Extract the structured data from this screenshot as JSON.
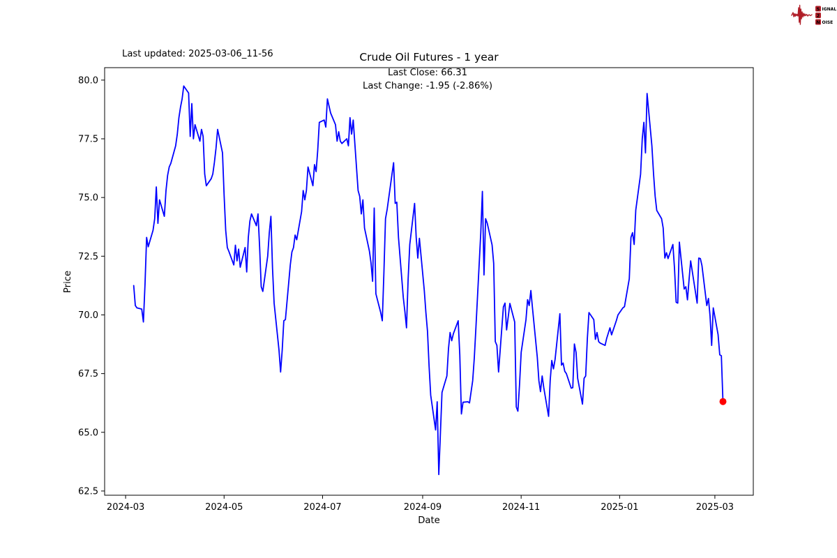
{
  "header": {
    "last_updated": "Last updated: 2025-03-06_11-56"
  },
  "logo": {
    "color": "#b01e28",
    "rows": [
      {
        "boxed": "S",
        "rest": "IGNAL"
      },
      {
        "boxed": "2",
        "rest": ""
      },
      {
        "boxed": "N",
        "rest": "OISE"
      }
    ]
  },
  "chart_data": {
    "type": "line",
    "title": "Crude Oil Futures - 1 year",
    "annotation": [
      "Last Close: 66.31",
      "Last Change: -1.95 (-2.86%)"
    ],
    "xlabel": "Date",
    "ylabel": "Price",
    "line_color": "#0000ff",
    "background": "#ffffff",
    "grid": false,
    "legend": "none",
    "x_axis": {
      "type": "date",
      "origin_day0": "2024-03-01",
      "range_days": [
        -13,
        388.8
      ],
      "ticks": [
        {
          "day": 0,
          "label": "2024-03"
        },
        {
          "day": 61,
          "label": "2024-05"
        },
        {
          "day": 122,
          "label": "2024-07"
        },
        {
          "day": 184,
          "label": "2024-09"
        },
        {
          "day": 245,
          "label": "2024-11"
        },
        {
          "day": 306,
          "label": "2025-01"
        },
        {
          "day": 365,
          "label": "2025-03"
        }
      ]
    },
    "y_axis": {
      "range": [
        62.32,
        80.53
      ],
      "ticks": [
        62.5,
        65.0,
        67.5,
        70.0,
        72.5,
        75.0,
        77.5,
        80.0
      ]
    },
    "marker": {
      "day": 370,
      "price": 66.31,
      "color": "#ff0000",
      "label_date": "2025-03-06"
    },
    "last_close": 66.31,
    "last_change": -1.95,
    "last_change_pct": -2.86,
    "series": [
      {
        "name": "Price",
        "points": [
          [
            5,
            71.25
          ],
          [
            6,
            70.4
          ],
          [
            7,
            70.3
          ],
          [
            10,
            70.25
          ],
          [
            11,
            69.7
          ],
          [
            12,
            71.3
          ],
          [
            13,
            73.3
          ],
          [
            14,
            72.9
          ],
          [
            17,
            73.6
          ],
          [
            18,
            74.1
          ],
          [
            19,
            75.45
          ],
          [
            20,
            73.9
          ],
          [
            21,
            74.9
          ],
          [
            24,
            74.2
          ],
          [
            25,
            75.3
          ],
          [
            26,
            75.94
          ],
          [
            27,
            76.3
          ],
          [
            28,
            76.45
          ],
          [
            31,
            77.2
          ],
          [
            32,
            77.7
          ],
          [
            33,
            78.4
          ],
          [
            34,
            78.85
          ],
          [
            35,
            79.2
          ],
          [
            36,
            79.75
          ],
          [
            39,
            79.45
          ],
          [
            40,
            77.6
          ],
          [
            41,
            79.0
          ],
          [
            42,
            77.5
          ],
          [
            43,
            78.1
          ],
          [
            46,
            77.4
          ],
          [
            47,
            77.9
          ],
          [
            48,
            77.6
          ],
          [
            49,
            76.0
          ],
          [
            50,
            75.5
          ],
          [
            53,
            75.8
          ],
          [
            54,
            76.0
          ],
          [
            55,
            76.5
          ],
          [
            56,
            77.1
          ],
          [
            57,
            77.9
          ],
          [
            60,
            76.9
          ],
          [
            61,
            75.1
          ],
          [
            62,
            73.6
          ],
          [
            63,
            72.87
          ],
          [
            64,
            72.7
          ],
          [
            67,
            72.13
          ],
          [
            68,
            72.97
          ],
          [
            69,
            72.3
          ],
          [
            70,
            72.8
          ],
          [
            71,
            72.03
          ],
          [
            74,
            72.87
          ],
          [
            75,
            71.83
          ],
          [
            76,
            73.3
          ],
          [
            77,
            74.0
          ],
          [
            78,
            74.3
          ],
          [
            81,
            73.8
          ],
          [
            82,
            74.3
          ],
          [
            83,
            72.9
          ],
          [
            84,
            71.2
          ],
          [
            85,
            71.0
          ],
          [
            88,
            72.5
          ],
          [
            89,
            73.5
          ],
          [
            90,
            74.2
          ],
          [
            91,
            72.0
          ],
          [
            92,
            70.5
          ],
          [
            95,
            68.5
          ],
          [
            96,
            67.57
          ],
          [
            97,
            68.5
          ],
          [
            98,
            69.75
          ],
          [
            99,
            69.8
          ],
          [
            102,
            72.13
          ],
          [
            103,
            72.68
          ],
          [
            104,
            72.87
          ],
          [
            105,
            73.4
          ],
          [
            106,
            73.2
          ],
          [
            109,
            74.4
          ],
          [
            110,
            75.3
          ],
          [
            111,
            74.9
          ],
          [
            112,
            75.3
          ],
          [
            113,
            76.3
          ],
          [
            116,
            75.5
          ],
          [
            117,
            76.4
          ],
          [
            118,
            76.1
          ],
          [
            119,
            77.0
          ],
          [
            120,
            78.2
          ],
          [
            123,
            78.3
          ],
          [
            124,
            78.0
          ],
          [
            125,
            79.2
          ],
          [
            127,
            78.6
          ],
          [
            130,
            78.1
          ],
          [
            131,
            77.4
          ],
          [
            132,
            77.8
          ],
          [
            133,
            77.4
          ],
          [
            134,
            77.3
          ],
          [
            137,
            77.5
          ],
          [
            138,
            77.2
          ],
          [
            139,
            78.4
          ],
          [
            140,
            77.7
          ],
          [
            141,
            78.3
          ],
          [
            144,
            75.3
          ],
          [
            145,
            75.05
          ],
          [
            146,
            74.3
          ],
          [
            147,
            74.9
          ],
          [
            148,
            73.7
          ],
          [
            151,
            72.72
          ],
          [
            152,
            72.22
          ],
          [
            153,
            71.43
          ],
          [
            154,
            74.55
          ],
          [
            155,
            70.9
          ],
          [
            158,
            70.1
          ],
          [
            159,
            69.75
          ],
          [
            160,
            71.8
          ],
          [
            161,
            74.1
          ],
          [
            162,
            74.5
          ],
          [
            165,
            75.99
          ],
          [
            166,
            76.48
          ],
          [
            167,
            74.75
          ],
          [
            168,
            74.8
          ],
          [
            169,
            73.3
          ],
          [
            172,
            70.74
          ],
          [
            173,
            70.14
          ],
          [
            174,
            69.45
          ],
          [
            175,
            71.5
          ],
          [
            176,
            73.0
          ],
          [
            179,
            74.75
          ],
          [
            180,
            73.3
          ],
          [
            181,
            72.42
          ],
          [
            182,
            73.26
          ],
          [
            185,
            71.04
          ],
          [
            186,
            70.1
          ],
          [
            187,
            69.3
          ],
          [
            188,
            67.8
          ],
          [
            189,
            66.58
          ],
          [
            192,
            65.1
          ],
          [
            193,
            66.3
          ],
          [
            194,
            63.2
          ],
          [
            196,
            66.7
          ],
          [
            199,
            67.4
          ],
          [
            200,
            68.56
          ],
          [
            201,
            69.25
          ],
          [
            202,
            68.9
          ],
          [
            203,
            69.2
          ],
          [
            206,
            69.75
          ],
          [
            207,
            68.3
          ],
          [
            208,
            65.78
          ],
          [
            209,
            66.28
          ],
          [
            212,
            66.3
          ],
          [
            213,
            66.25
          ],
          [
            215,
            67.2
          ],
          [
            216,
            68.17
          ],
          [
            217,
            69.5
          ],
          [
            220,
            73.5
          ],
          [
            221,
            75.26
          ],
          [
            222,
            71.7
          ],
          [
            223,
            74.1
          ],
          [
            224,
            73.9
          ],
          [
            227,
            72.98
          ],
          [
            228,
            72.19
          ],
          [
            229,
            68.86
          ],
          [
            230,
            68.7
          ],
          [
            231,
            67.57
          ],
          [
            234,
            70.34
          ],
          [
            235,
            70.5
          ],
          [
            236,
            69.36
          ],
          [
            237,
            69.9
          ],
          [
            238,
            70.49
          ],
          [
            241,
            69.7
          ],
          [
            242,
            66.08
          ],
          [
            243,
            65.9
          ],
          [
            244,
            67.0
          ],
          [
            245,
            68.4
          ],
          [
            248,
            69.8
          ],
          [
            249,
            70.65
          ],
          [
            250,
            70.4
          ],
          [
            251,
            71.04
          ],
          [
            252,
            70.3
          ],
          [
            255,
            68.2
          ],
          [
            256,
            67.2
          ],
          [
            257,
            66.73
          ],
          [
            258,
            67.4
          ],
          [
            259,
            66.9
          ],
          [
            262,
            65.68
          ],
          [
            263,
            67.2
          ],
          [
            264,
            68.06
          ],
          [
            265,
            67.7
          ],
          [
            266,
            68.1
          ],
          [
            269,
            70.05
          ],
          [
            270,
            67.86
          ],
          [
            271,
            67.95
          ],
          [
            272,
            67.6
          ],
          [
            273,
            67.5
          ],
          [
            276,
            66.88
          ],
          [
            277,
            66.9
          ],
          [
            278,
            68.76
          ],
          [
            279,
            68.4
          ],
          [
            280,
            67.3
          ],
          [
            283,
            66.2
          ],
          [
            284,
            67.3
          ],
          [
            285,
            67.4
          ],
          [
            286,
            69.0
          ],
          [
            287,
            70.1
          ],
          [
            290,
            69.8
          ],
          [
            291,
            68.96
          ],
          [
            292,
            69.25
          ],
          [
            293,
            68.86
          ],
          [
            294,
            68.8
          ],
          [
            297,
            68.7
          ],
          [
            298,
            69.0
          ],
          [
            300,
            69.45
          ],
          [
            301,
            69.15
          ],
          [
            304,
            69.76
          ],
          [
            305,
            70.0
          ],
          [
            308,
            70.3
          ],
          [
            309,
            70.35
          ],
          [
            312,
            71.54
          ],
          [
            313,
            73.3
          ],
          [
            314,
            73.5
          ],
          [
            315,
            73.0
          ],
          [
            316,
            74.46
          ],
          [
            319,
            75.99
          ],
          [
            320,
            77.5
          ],
          [
            321,
            78.2
          ],
          [
            322,
            76.9
          ],
          [
            323,
            79.43
          ],
          [
            326,
            77.2
          ],
          [
            327,
            76.0
          ],
          [
            328,
            75.05
          ],
          [
            329,
            74.45
          ],
          [
            332,
            74.1
          ],
          [
            333,
            73.7
          ],
          [
            334,
            72.42
          ],
          [
            335,
            72.65
          ],
          [
            336,
            72.4
          ],
          [
            339,
            73.0
          ],
          [
            340,
            72.0
          ],
          [
            341,
            70.54
          ],
          [
            342,
            70.5
          ],
          [
            343,
            73.1
          ],
          [
            346,
            71.1
          ],
          [
            347,
            71.2
          ],
          [
            348,
            70.64
          ],
          [
            349,
            71.5
          ],
          [
            350,
            72.3
          ],
          [
            354,
            70.5
          ],
          [
            355,
            72.42
          ],
          [
            356,
            72.4
          ],
          [
            357,
            72.1
          ],
          [
            360,
            70.4
          ],
          [
            361,
            70.7
          ],
          [
            362,
            69.95
          ],
          [
            363,
            68.7
          ],
          [
            364,
            70.3
          ],
          [
            367,
            69.16
          ],
          [
            368,
            68.3
          ],
          [
            369,
            68.26
          ],
          [
            370,
            66.31
          ]
        ]
      }
    ]
  }
}
